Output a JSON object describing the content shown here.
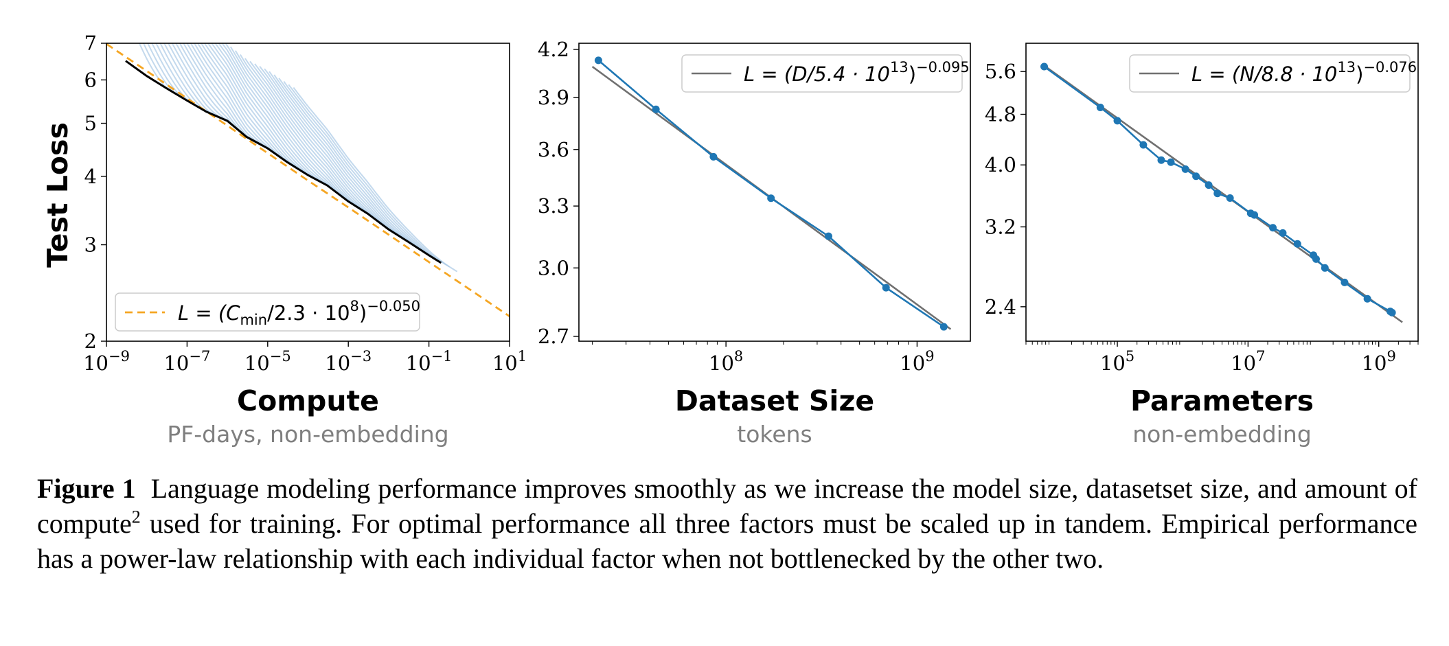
{
  "panels": [
    {
      "id": "compute",
      "ylabel": "Test Loss",
      "xlabel": "Compute",
      "xsublabel": "PF-days, non-embedding",
      "yticks": [
        "2",
        "3",
        "4",
        "5",
        "6",
        "7"
      ],
      "xticks_base": "10",
      "xticks_exp": [
        "−9",
        "−7",
        "−5",
        "−3",
        "−1",
        "1"
      ],
      "legend": {
        "lhs": "L = (C",
        "sub": "min",
        "mid": "/2.3 · 10",
        "exp1": "8",
        "close": ")",
        "exp2": "−0.050"
      }
    },
    {
      "id": "dataset",
      "xlabel": "Dataset Size",
      "xsublabel": "tokens",
      "yticks": [
        "2.7",
        "3.0",
        "3.3",
        "3.6",
        "3.9",
        "4.2"
      ],
      "xticks_base": "10",
      "xticks_exp": [
        "8",
        "9"
      ],
      "legend": {
        "lhs": "L = (D/5.4 · 10",
        "exp1": "13",
        "close": ")",
        "exp2": "−0.095"
      }
    },
    {
      "id": "parameters",
      "xlabel": "Parameters",
      "xsublabel": "non-embedding",
      "yticks": [
        "2.4",
        "3.2",
        "4.0",
        "4.8",
        "5.6"
      ],
      "xticks_base": "10",
      "xticks_exp": [
        "5",
        "7",
        "9"
      ],
      "legend": {
        "lhs": "L = (N/8.8 · 10",
        "exp1": "13",
        "close": ")",
        "exp2": "−0.076"
      }
    }
  ],
  "chart_data": [
    {
      "type": "line",
      "ylabel": "Test Loss",
      "xlabel": "Compute",
      "x_scale": "log",
      "y_scale": "log",
      "xlim": [
        1e-09,
        10
      ],
      "ylim": [
        2,
        7
      ],
      "legend_position": "lower-left",
      "series": [
        {
          "name": "L = (C_min/2.3 · 10^8)^−0.050",
          "style": "dashed",
          "color": "#f5a623",
          "x": [
            1e-09,
            1e-08,
            1e-07,
            1e-06,
            1e-05,
            0.0001,
            0.001,
            0.01,
            0.1,
            1,
            10
          ],
          "y": [
            6.98,
            6.23,
            5.55,
            4.95,
            4.41,
            3.93,
            3.51,
            3.13,
            2.79,
            2.49,
            2.22
          ]
        },
        {
          "style": "solid",
          "color": "#000000",
          "x": [
            3e-09,
            1e-08,
            3e-08,
            1e-07,
            3e-07,
            1e-06,
            3e-06,
            1e-05,
            3e-05,
            0.0001,
            0.0003,
            0.001,
            0.003,
            0.01,
            0.03,
            0.1,
            0.2
          ],
          "y": [
            6.5,
            6.1,
            5.8,
            5.5,
            5.25,
            5.05,
            4.72,
            4.5,
            4.25,
            4.02,
            3.85,
            3.6,
            3.42,
            3.2,
            3.04,
            2.87,
            2.78
          ]
        }
      ],
      "background_curves": {
        "color": "#a9c9e5",
        "description_count": 38
      }
    },
    {
      "type": "line",
      "xlabel": "Dataset Size",
      "x_scale": "log",
      "y_scale": "log",
      "xlim": [
        17000000.0,
        1900000000.0
      ],
      "ylim": [
        2.68,
        4.24
      ],
      "legend_position": "top-right",
      "series": [
        {
          "name": "data",
          "color": "#1f77b4",
          "marker": "circle",
          "x": [
            21500000.0,
            43000000.0,
            86000000.0,
            172000000.0,
            344000000.0,
            688000000.0,
            1380000000.0
          ],
          "y": [
            4.13,
            3.83,
            3.56,
            3.34,
            3.15,
            2.91,
            2.74
          ]
        },
        {
          "name": "L = (D/5.4 · 10^13)^−0.095",
          "color": "#707070",
          "x": [
            20000000.0,
            1500000000.0
          ],
          "y": [
            4.09,
            2.73
          ]
        }
      ]
    },
    {
      "type": "line",
      "xlabel": "Parameters",
      "x_scale": "log",
      "y_scale": "log",
      "xlim": [
        4000.0,
        4000000000.0
      ],
      "ylim": [
        2.12,
        6.2
      ],
      "legend_position": "top-right",
      "series": [
        {
          "name": "data",
          "color": "#1f77b4",
          "marker": "circle",
          "x": [
            7600.0,
            55000.0,
            100000.0,
            250000.0,
            470000.0,
            660000.0,
            1100000.0,
            1600000.0,
            2500000.0,
            3400000.0,
            5300000.0,
            11000000.0,
            12500000.0,
            24000000.0,
            34000000.0,
            57000000.0,
            100000000.0,
            110000000.0,
            150000000.0,
            300000000.0,
            670000000.0,
            1500000000.0,
            1600000000.0
          ],
          "y": [
            5.7,
            4.92,
            4.69,
            4.3,
            4.07,
            4.04,
            3.94,
            3.84,
            3.72,
            3.61,
            3.55,
            3.36,
            3.34,
            3.19,
            3.13,
            3.01,
            2.89,
            2.85,
            2.76,
            2.62,
            2.47,
            2.36,
            2.35
          ]
        },
        {
          "name": "L = (N/8.8 · 10^13)^−0.076",
          "color": "#707070",
          "x": [
            7600.0,
            2300000000.0
          ],
          "y": [
            5.72,
            2.27
          ]
        }
      ]
    }
  ],
  "caption": {
    "label": "Figure 1",
    "text_before_sup": "Language modeling performance improves smoothly as we increase the model size, datasetset size, and amount of compute",
    "sup": "2",
    "text_after_sup": " used for training. For optimal performance all three factors must be scaled up in tandem. Empirical performance has a power-law relationship with each individual factor when not bottlenecked by the other two."
  }
}
